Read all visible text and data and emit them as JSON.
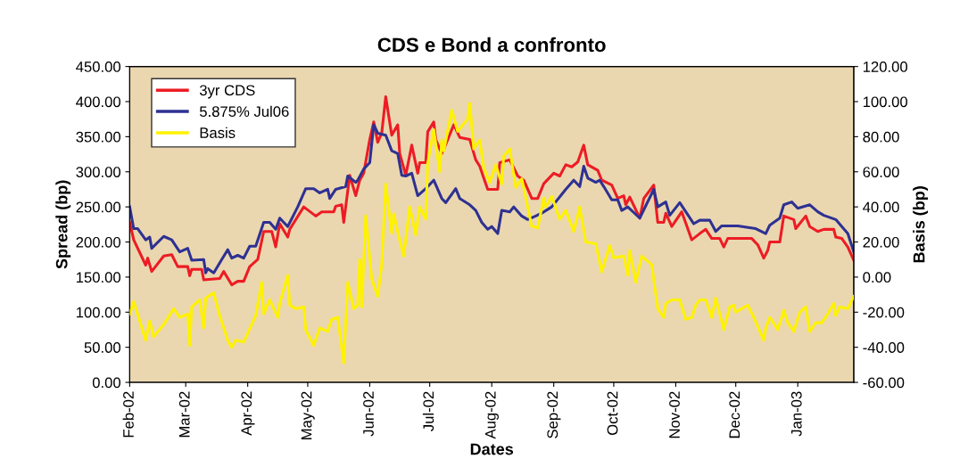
{
  "chart_data": {
    "type": "line",
    "title": "CDS e Bond a confronto",
    "xlabel": "Dates",
    "ylabel": "Spread (bp)",
    "y2label": "Basis (bp)",
    "legend": "top left",
    "grid": false,
    "marker": "none",
    "line_style": "solid",
    "xlim": [
      "2002-02-01",
      "2003-01-29"
    ],
    "xticks": [
      {
        "value": "2002-02-01",
        "label": "Feb-02"
      },
      {
        "value": "2002-03-01",
        "label": "Mar-02"
      },
      {
        "value": "2002-04-01",
        "label": "Apr-02"
      },
      {
        "value": "2002-05-01",
        "label": "May-02"
      },
      {
        "value": "2002-06-01",
        "label": "Jun-02"
      },
      {
        "value": "2002-07-01",
        "label": "Jul-02"
      },
      {
        "value": "2002-08-01",
        "label": "Aug-02"
      },
      {
        "value": "2002-09-01",
        "label": "Sep-02"
      },
      {
        "value": "2002-10-01",
        "label": "Oct-02"
      },
      {
        "value": "2002-11-01",
        "label": "Nov-02"
      },
      {
        "value": "2002-12-01",
        "label": "Dec-02"
      },
      {
        "value": "2003-01-01",
        "label": "Jan-03"
      }
    ],
    "ylim": [
      0,
      450
    ],
    "yticks": [
      {
        "value": 0,
        "label": "0.00"
      },
      {
        "value": 50,
        "label": "50.00"
      },
      {
        "value": 100,
        "label": "100.00"
      },
      {
        "value": 150,
        "label": "150.00"
      },
      {
        "value": 200,
        "label": "200.00"
      },
      {
        "value": 250,
        "label": "250.00"
      },
      {
        "value": 300,
        "label": "300.00"
      },
      {
        "value": 350,
        "label": "350.00"
      },
      {
        "value": 400,
        "label": "400.00"
      },
      {
        "value": 450,
        "label": "450.00"
      }
    ],
    "y2lim": [
      -60,
      120
    ],
    "y2ticks": [
      {
        "value": -60,
        "label": "-60.00"
      },
      {
        "value": -40,
        "label": "-40.00"
      },
      {
        "value": -20,
        "label": "-20.00"
      },
      {
        "value": 0,
        "label": "0.00"
      },
      {
        "value": 20,
        "label": "20.00"
      },
      {
        "value": 40,
        "label": "40.00"
      },
      {
        "value": 60,
        "label": "60.00"
      },
      {
        "value": 80,
        "label": "80.00"
      },
      {
        "value": 100,
        "label": "100.00"
      },
      {
        "value": 120,
        "label": "120.00"
      }
    ],
    "series": [
      {
        "name": "3yr CDS",
        "color": "#ed1c24",
        "x": [
          "2002-02-01",
          "2002-02-03",
          "2002-02-09",
          "2002-02-10",
          "2002-02-12",
          "2002-02-18",
          "2002-02-22",
          "2002-02-25",
          "2002-03-02",
          "2002-03-03",
          "2002-03-04",
          "2002-03-09",
          "2002-03-10",
          "2002-03-18",
          "2002-03-20",
          "2002-03-24",
          "2002-03-27",
          "2002-03-30",
          "2002-04-02",
          "2002-04-06",
          "2002-04-09",
          "2002-04-13",
          "2002-04-15",
          "2002-04-17",
          "2002-04-21",
          "2002-04-22",
          "2002-04-29",
          "2002-05-05",
          "2002-05-08",
          "2002-05-14",
          "2002-05-15",
          "2002-05-18",
          "2002-05-19",
          "2002-05-22",
          "2002-05-25",
          "2002-05-27",
          "2002-05-29",
          "2002-06-01",
          "2002-06-03",
          "2002-06-05",
          "2002-06-07",
          "2002-06-09",
          "2002-06-12",
          "2002-06-15",
          "2002-06-16",
          "2002-06-19",
          "2002-06-22",
          "2002-06-25",
          "2002-06-26",
          "2002-06-29",
          "2002-06-30",
          "2002-07-03",
          "2002-07-04",
          "2002-07-07",
          "2002-07-10",
          "2002-07-13",
          "2002-07-16",
          "2002-07-21",
          "2002-07-24",
          "2002-07-26",
          "2002-07-28",
          "2002-07-30",
          "2002-08-04",
          "2002-08-05",
          "2002-08-10",
          "2002-08-14",
          "2002-08-17",
          "2002-08-21",
          "2002-08-24",
          "2002-08-27",
          "2002-09-01",
          "2002-09-04",
          "2002-09-07",
          "2002-09-10",
          "2002-09-13",
          "2002-09-16",
          "2002-09-18",
          "2002-09-23",
          "2002-09-25",
          "2002-09-30",
          "2002-10-03",
          "2002-10-06",
          "2002-10-07",
          "2002-10-09",
          "2002-10-14",
          "2002-10-16",
          "2002-10-21",
          "2002-10-23",
          "2002-10-26",
          "2002-10-27",
          "2002-10-30",
          "2002-11-04",
          "2002-11-09",
          "2002-11-13",
          "2002-11-16",
          "2002-11-19",
          "2002-11-23",
          "2002-11-25",
          "2002-11-27",
          "2002-12-09",
          "2002-12-12",
          "2002-12-15",
          "2002-12-17",
          "2002-12-18",
          "2002-12-23",
          "2002-12-25",
          "2002-12-30",
          "2002-12-31",
          "2003-01-05",
          "2003-01-07",
          "2003-01-11",
          "2003-01-14",
          "2003-01-19",
          "2003-01-20",
          "2003-01-23",
          "2003-01-26",
          "2003-01-29"
        ],
        "values": [
          228,
          203,
          167,
          177,
          158,
          180,
          182,
          165,
          165,
          152,
          161,
          161,
          146,
          148,
          158,
          139,
          144,
          144,
          165,
          175,
          215,
          215,
          193,
          226,
          207,
          218,
          250,
          237,
          243,
          243,
          251,
          253,
          228,
          295,
          266,
          288,
          298,
          346,
          371,
          342,
          355,
          407,
          352,
          367,
          326,
          295,
          338,
          298,
          313,
          313,
          357,
          371,
          346,
          326,
          346,
          367,
          349,
          346,
          317,
          308,
          291,
          275,
          275,
          313,
          317,
          294,
          288,
          262,
          262,
          283,
          298,
          294,
          310,
          307,
          314,
          338,
          310,
          302,
          288,
          281,
          262,
          266,
          253,
          264,
          234,
          262,
          281,
          228,
          228,
          241,
          222,
          243,
          203,
          212,
          218,
          205,
          205,
          193,
          205,
          205,
          196,
          177,
          188,
          200,
          200,
          237,
          232,
          219,
          237,
          222,
          215,
          218,
          218,
          207,
          205,
          193,
          174
        ]
      },
      {
        "name": "5.875% Jul06",
        "color": "#2e3192",
        "x": [
          "2002-02-01",
          "2002-02-03",
          "2002-02-05",
          "2002-02-09",
          "2002-02-11",
          "2002-02-12",
          "2002-02-18",
          "2002-02-22",
          "2002-02-26",
          "2002-03-02",
          "2002-03-04",
          "2002-03-10",
          "2002-03-11",
          "2002-03-12",
          "2002-03-15",
          "2002-03-19",
          "2002-03-22",
          "2002-03-24",
          "2002-03-27",
          "2002-03-30",
          "2002-04-02",
          "2002-04-05",
          "2002-04-09",
          "2002-04-12",
          "2002-04-15",
          "2002-04-17",
          "2002-04-21",
          "2002-04-26",
          "2002-04-30",
          "2002-05-04",
          "2002-05-07",
          "2002-05-11",
          "2002-05-12",
          "2002-05-15",
          "2002-05-20",
          "2002-05-21",
          "2002-05-25",
          "2002-05-26",
          "2002-05-29",
          "2002-06-01",
          "2002-06-03",
          "2002-06-05",
          "2002-06-09",
          "2002-06-12",
          "2002-06-15",
          "2002-06-17",
          "2002-06-19",
          "2002-06-22",
          "2002-06-25",
          "2002-06-29",
          "2002-07-03",
          "2002-07-07",
          "2002-07-09",
          "2002-07-14",
          "2002-07-16",
          "2002-07-21",
          "2002-07-24",
          "2002-07-27",
          "2002-07-30",
          "2002-08-01",
          "2002-08-04",
          "2002-08-06",
          "2002-08-10",
          "2002-08-12",
          "2002-08-16",
          "2002-08-19",
          "2002-08-23",
          "2002-08-26",
          "2002-08-31",
          "2002-09-07",
          "2002-09-11",
          "2002-09-14",
          "2002-09-16",
          "2002-09-18",
          "2002-09-22",
          "2002-09-24",
          "2002-09-26",
          "2002-09-30",
          "2002-10-03",
          "2002-10-05",
          "2002-10-08",
          "2002-10-14",
          "2002-10-21",
          "2002-10-23",
          "2002-10-27",
          "2002-10-29",
          "2002-11-03",
          "2002-11-10",
          "2002-11-13",
          "2002-11-18",
          "2002-11-21",
          "2002-11-24",
          "2002-12-02",
          "2002-12-11",
          "2002-12-16",
          "2002-12-18",
          "2002-12-23",
          "2002-12-25",
          "2002-12-29",
          "2003-01-01",
          "2003-01-07",
          "2003-01-11",
          "2003-01-14",
          "2003-01-20",
          "2003-01-26",
          "2003-01-29"
        ],
        "values": [
          250,
          219,
          219,
          203,
          207,
          191,
          208,
          203,
          186,
          191,
          174,
          175,
          156,
          162,
          156,
          175,
          189,
          177,
          181,
          177,
          194,
          194,
          228,
          228,
          218,
          234,
          222,
          250,
          276,
          276,
          270,
          275,
          262,
          275,
          279,
          294,
          285,
          288,
          304,
          313,
          367,
          355,
          352,
          330,
          326,
          295,
          294,
          298,
          266,
          276,
          288,
          262,
          256,
          276,
          262,
          253,
          245,
          228,
          218,
          222,
          212,
          245,
          243,
          250,
          237,
          232,
          237,
          241,
          250,
          275,
          288,
          279,
          308,
          291,
          285,
          288,
          279,
          260,
          260,
          245,
          250,
          234,
          275,
          250,
          257,
          238,
          256,
          226,
          231,
          231,
          215,
          223,
          223,
          219,
          212,
          224,
          234,
          253,
          257,
          248,
          253,
          243,
          238,
          232,
          212,
          186
        ]
      },
      {
        "name": "Basis",
        "color": "#fff200",
        "axis": "y2",
        "x": [
          "2002-02-01",
          "2002-02-03",
          "2002-02-09",
          "2002-02-11",
          "2002-02-13",
          "2002-02-18",
          "2002-02-23",
          "2002-02-26",
          "2002-03-02",
          "2002-03-03",
          "2002-03-04",
          "2002-03-08",
          "2002-03-10",
          "2002-03-11",
          "2002-03-15",
          "2002-03-18",
          "2002-03-22",
          "2002-03-24",
          "2002-03-26",
          "2002-03-30",
          "2002-04-01",
          "2002-04-05",
          "2002-04-08",
          "2002-04-09",
          "2002-04-12",
          "2002-04-16",
          "2002-04-17",
          "2002-04-21",
          "2002-04-22",
          "2002-04-25",
          "2002-04-29",
          "2002-04-30",
          "2002-05-04",
          "2002-05-07",
          "2002-05-11",
          "2002-05-13",
          "2002-05-16",
          "2002-05-19",
          "2002-05-21",
          "2002-05-24",
          "2002-05-26",
          "2002-05-27",
          "2002-05-28",
          "2002-05-30",
          "2002-06-02",
          "2002-06-05",
          "2002-06-07",
          "2002-06-09",
          "2002-06-12",
          "2002-06-13",
          "2002-06-16",
          "2002-06-18",
          "2002-06-21",
          "2002-06-24",
          "2002-06-26",
          "2002-06-29",
          "2002-06-30",
          "2002-07-03",
          "2002-07-06",
          "2002-07-07",
          "2002-07-08",
          "2002-07-12",
          "2002-07-15",
          "2002-07-17",
          "2002-07-20",
          "2002-07-21",
          "2002-07-23",
          "2002-07-26",
          "2002-07-28",
          "2002-07-31",
          "2002-08-03",
          "2002-08-06",
          "2002-08-07",
          "2002-08-10",
          "2002-08-13",
          "2002-08-16",
          "2002-08-21",
          "2002-08-24",
          "2002-08-27",
          "2002-08-28",
          "2002-08-31",
          "2002-09-04",
          "2002-09-07",
          "2002-09-11",
          "2002-09-14",
          "2002-09-17",
          "2002-09-22",
          "2002-09-25",
          "2002-09-29",
          "2002-10-01",
          "2002-10-06",
          "2002-10-08",
          "2002-10-09",
          "2002-10-12",
          "2002-10-15",
          "2002-10-20",
          "2002-10-23",
          "2002-10-26",
          "2002-10-27",
          "2002-10-30",
          "2002-11-03",
          "2002-11-06",
          "2002-11-09",
          "2002-11-11",
          "2002-11-13",
          "2002-11-16",
          "2002-11-19",
          "2002-11-21",
          "2002-11-25",
          "2002-11-28",
          "2002-11-30",
          "2002-12-01",
          "2002-12-07",
          "2002-12-10",
          "2002-12-15",
          "2002-12-16",
          "2002-12-18",
          "2002-12-22",
          "2002-12-25",
          "2002-12-27",
          "2002-12-30",
          "2003-01-02",
          "2003-01-05",
          "2003-01-07",
          "2003-01-10",
          "2003-01-13",
          "2003-01-16",
          "2003-01-19",
          "2003-01-20",
          "2003-01-22",
          "2003-01-26",
          "2003-01-29"
        ],
        "values": [
          -21,
          -14,
          -36,
          -25,
          -34,
          -27,
          -18,
          -23,
          -21,
          -39,
          -17,
          -13,
          -29,
          -12,
          -9,
          -22,
          -36,
          -40,
          -36,
          -37,
          -32,
          -22,
          -3,
          -21,
          -13,
          -23,
          -15,
          1,
          -16,
          -18,
          -17,
          -30,
          -39,
          -29,
          -31,
          -24,
          -23,
          -49,
          -3,
          -18,
          -16,
          10,
          -17,
          35,
          -1,
          -11,
          7,
          53,
          25,
          36,
          21,
          12,
          40,
          24,
          40,
          33,
          65,
          84,
          60,
          78,
          72,
          95,
          83,
          86,
          90,
          99,
          73,
          78,
          62,
          54,
          64,
          53,
          69,
          73,
          51,
          56,
          29,
          28,
          45,
          40,
          46,
          33,
          38,
          26,
          40,
          20,
          19,
          3,
          18,
          11,
          12,
          1,
          15,
          -3,
          12,
          7,
          -18,
          -23,
          -15,
          -13,
          -13,
          -24,
          -23,
          -16,
          -13,
          -13,
          -23,
          -12,
          -30,
          -17,
          -16,
          -20,
          -16,
          -23,
          -36,
          -29,
          -23,
          -30,
          -19,
          -26,
          -31,
          -20,
          -17,
          -31,
          -26,
          -26,
          -21,
          -15,
          -22,
          -17,
          -18,
          -11
        ]
      }
    ]
  }
}
